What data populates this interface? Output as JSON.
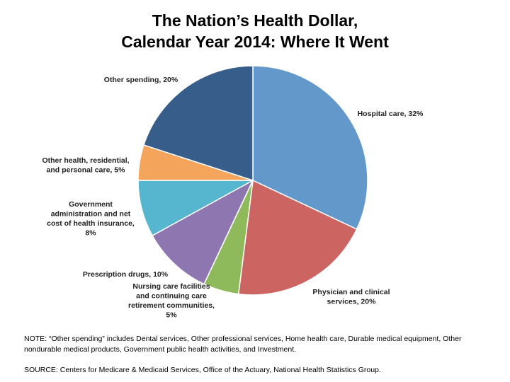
{
  "title_lines": [
    "The Nation’s Health Dollar,",
    "Calendar Year 2014: Where It Went"
  ],
  "chart_data": {
    "type": "pie",
    "title": "The Nation’s Health Dollar, Calendar Year 2014: Where It Went",
    "slices": [
      {
        "label": "Hospital care, 32%",
        "label_lines": [
          "Hospital care, 32%"
        ],
        "value": 32,
        "color": "#6398CA"
      },
      {
        "label": "Physician and clinical services, 20%",
        "label_lines": [
          "Physician and clinical",
          "services, 20%"
        ],
        "value": 20,
        "color": "#CC6561"
      },
      {
        "label": "Nursing care facilities and continuing care retirement communities, 5%",
        "label_lines": [
          "Nursing care facilities",
          "and continuing care",
          "retirement communities,",
          "5%"
        ],
        "value": 5,
        "color": "#8FBA5B"
      },
      {
        "label": "Prescription drugs, 10%",
        "label_lines": [
          "Prescription drugs, 10%"
        ],
        "value": 10,
        "color": "#8E77B1"
      },
      {
        "label": "Government administration and net cost of health insurance, 8%",
        "label_lines": [
          "Government",
          "administration and net",
          "cost of health insurance,",
          "8%"
        ],
        "value": 8,
        "color": "#56B6CF"
      },
      {
        "label": "Other health, residential, and personal care, 5%",
        "label_lines": [
          "Other health, residential,",
          "and personal care, 5%"
        ],
        "value": 5,
        "color": "#F5A55B"
      },
      {
        "label": "Other spending, 20%",
        "label_lines": [
          "Other spending, 20%"
        ],
        "value": 20,
        "color": "#375D8B"
      }
    ],
    "start_angle_deg": 0,
    "direction": "clockwise"
  },
  "note": "NOTE:  “Other spending” includes Dental services, Other professional services, Home health care, Durable medical equipment, Other nondurable medical products, Government public health activities, and Investment.",
  "source": "SOURCE: Centers for Medicare & Medicaid Services, Office of the Actuary, National Health Statistics Group."
}
